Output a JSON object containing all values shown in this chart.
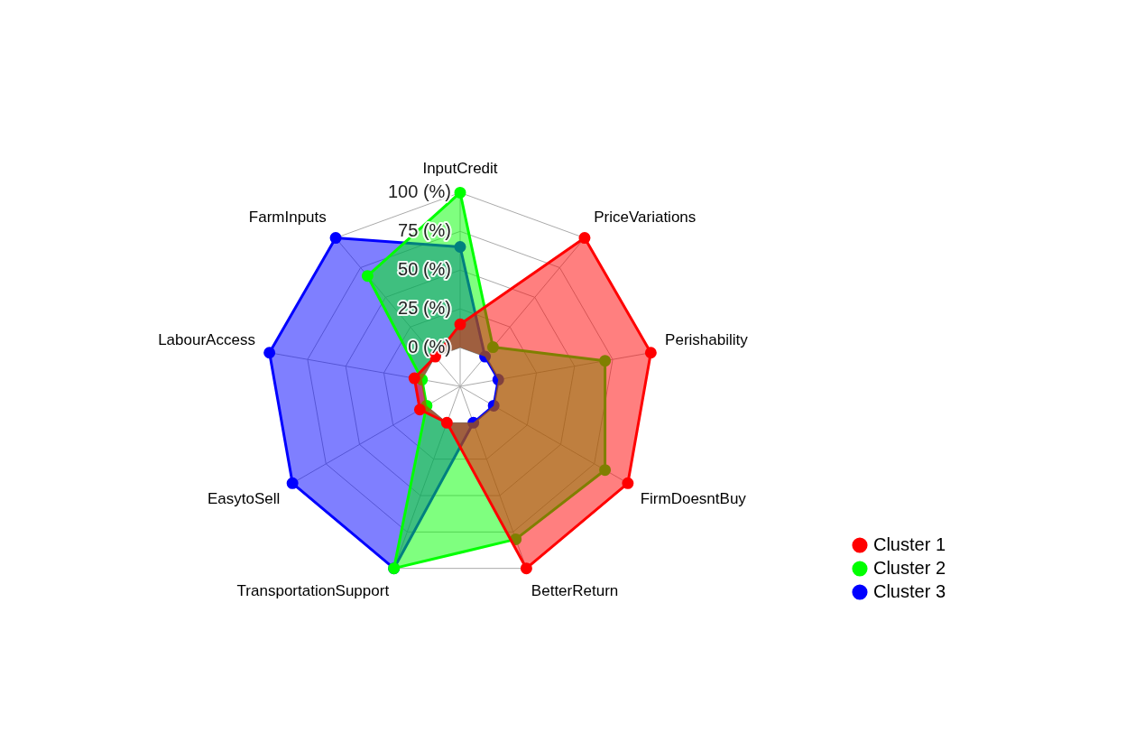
{
  "chart_data": {
    "type": "radar",
    "categories": [
      "InputCredit",
      "PriceVariations",
      "Perishability",
      "FirmDoesntBuy",
      "BetterReturn",
      "TransportationSupport",
      "EasytoSell",
      "LabourAccess",
      "FarmInputs"
    ],
    "series": [
      {
        "name": "Cluster 1",
        "color": "#ff0000",
        "values": [
          15,
          100,
          100,
          100,
          100,
          0,
          5,
          5,
          0
        ]
      },
      {
        "name": "Cluster 2",
        "color": "#00ff00",
        "values": [
          100,
          8,
          70,
          83,
          80,
          100,
          0,
          0,
          68
        ]
      },
      {
        "name": "Cluster 3",
        "color": "#0000ff",
        "values": [
          65,
          0,
          0,
          0,
          0,
          100,
          100,
          100,
          100
        ]
      }
    ],
    "ylim": [
      -25,
      100
    ],
    "yticks": [
      {
        "value": 0,
        "label": "0 (%)"
      },
      {
        "value": 25,
        "label": "25 (%)"
      },
      {
        "value": 50,
        "label": "50 (%)"
      },
      {
        "value": 75,
        "label": "75 (%)"
      },
      {
        "value": 100,
        "label": "100 (%)"
      }
    ],
    "legend": "bottom right",
    "marker": "circle",
    "grid": true
  }
}
